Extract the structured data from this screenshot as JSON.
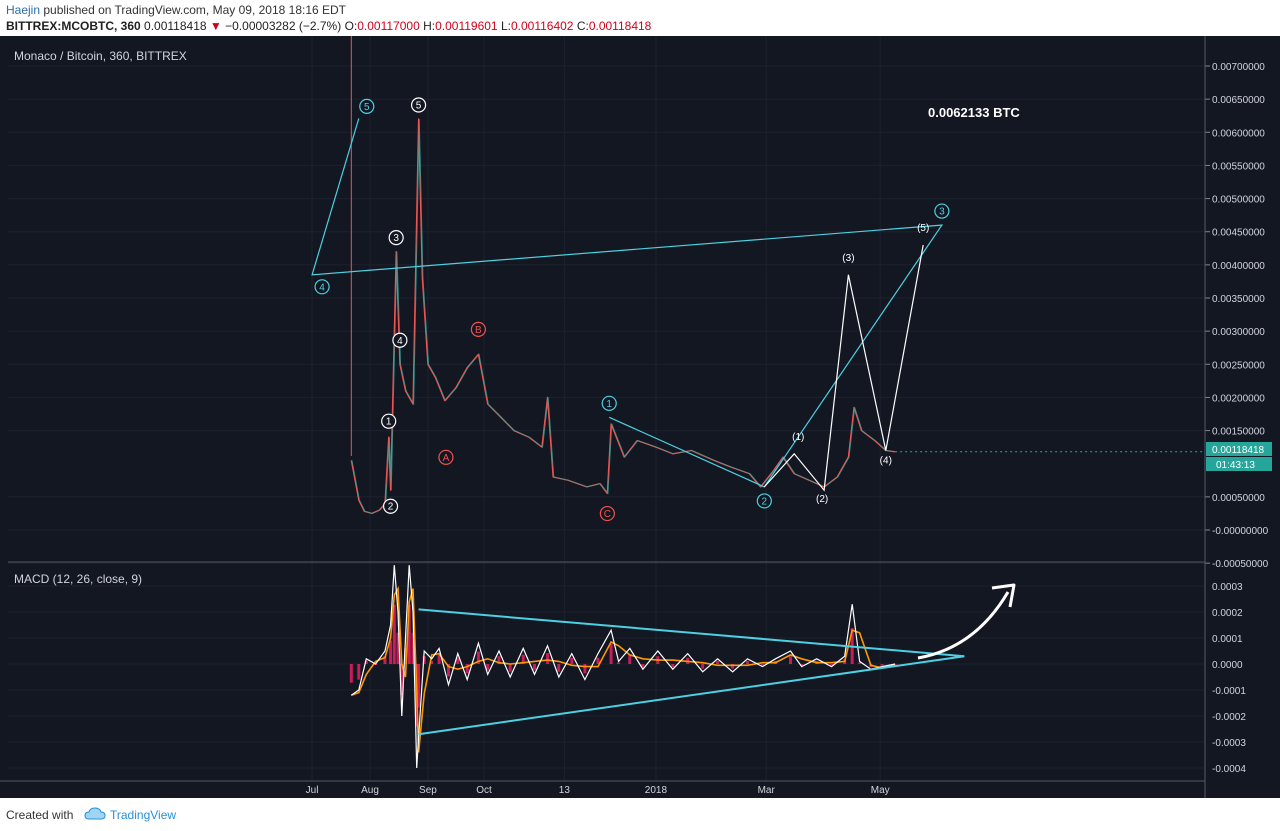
{
  "header": {
    "author": "Haejin",
    "published": "published on TradingView.com, May 09, 2018 18:16 EDT",
    "symbol": "BITTREX:MCOBTC, 360",
    "last": "0.00118418",
    "change": "−0.00003282 (−2.7%)",
    "o_label": "O:",
    "o_value": "0.00117000",
    "h_label": "H:",
    "h_value": "0.00119601",
    "l_label": "L:",
    "l_value": "0.00116402",
    "c_label": "C:",
    "c_value": "0.00118418"
  },
  "footer": {
    "created_with": "Created with",
    "brand": "TradingView"
  },
  "colors": {
    "bg": "#131722",
    "up": "#26a69a",
    "down": "#ef5350",
    "wave": "#4dd0e1",
    "macd": "#ffffff",
    "signal": "#ff9800",
    "hist": "#e91e63"
  },
  "chart_data": [
    {
      "type": "line",
      "title": "Monaco / Bitcoin, 360, BITTREX",
      "x_ticks": [
        "Aug",
        "Oct",
        "13",
        "2018",
        "Mar",
        "May",
        "Jul",
        "Sep"
      ],
      "y_ticks": [
        "0.00700000",
        "0.00650000",
        "0.00600000",
        "0.00550000",
        "0.00500000",
        "0.00450000",
        "0.00400000",
        "0.00350000",
        "0.00300000",
        "0.00250000",
        "0.00200000",
        "0.00150000",
        "0.00050000",
        "-0.00000000",
        "-0.00050000"
      ],
      "ylim": [
        -0.0006,
        0.0073
      ],
      "last_price_label": "0.00118418",
      "countdown_label": "01:43:13",
      "price": [
        [
          "Jul 22",
          0.00105
        ],
        [
          "Jul 26",
          0.00045
        ],
        [
          "Jul 29",
          0.00028
        ],
        [
          "Aug 2",
          0.00025
        ],
        [
          "Aug 6",
          0.0003
        ],
        [
          "Aug 9",
          0.0004
        ],
        [
          "Aug 11",
          0.0014
        ],
        [
          "Aug 12",
          0.0006
        ],
        [
          "Aug 15",
          0.0042
        ],
        [
          "Aug 17",
          0.0025
        ],
        [
          "Aug 20",
          0.0021
        ],
        [
          "Aug 24",
          0.0019
        ],
        [
          "Aug 27",
          0.0062
        ],
        [
          "Aug 29",
          0.0038
        ],
        [
          "Sep 1",
          0.0025
        ],
        [
          "Sep 5",
          0.0023
        ],
        [
          "Sep 10",
          0.00195
        ],
        [
          "Sep 16",
          0.00215
        ],
        [
          "Sep 22",
          0.00245
        ],
        [
          "Sep 28",
          0.00265
        ],
        [
          "Oct 3",
          0.0019
        ],
        [
          "Oct 10",
          0.0017
        ],
        [
          "Oct 17",
          0.0015
        ],
        [
          "Oct 25",
          0.0014
        ],
        [
          "Nov 1",
          0.00125
        ],
        [
          "Nov 4",
          0.002
        ],
        [
          "Nov 7",
          0.0008
        ],
        [
          "Nov 15",
          0.00075
        ],
        [
          "Nov 25",
          0.00065
        ],
        [
          "Dec 2",
          0.0007
        ],
        [
          "Dec 6",
          0.00055
        ],
        [
          "Dec 8",
          0.0016
        ],
        [
          "Dec 15",
          0.0011
        ],
        [
          "Dec 22",
          0.00135
        ],
        [
          "Jan 1",
          0.00125
        ],
        [
          "Jan 10",
          0.00115
        ],
        [
          "Jan 20",
          0.0012
        ],
        [
          "Feb 1",
          0.00105
        ],
        [
          "Feb 10",
          0.00095
        ],
        [
          "Feb 20",
          0.00085
        ],
        [
          "Feb 26",
          0.00065
        ],
        [
          "Mar 5",
          0.0009
        ],
        [
          "Mar 10",
          0.0011
        ],
        [
          "Mar 16",
          0.00085
        ],
        [
          "Mar 24",
          0.00075
        ],
        [
          "Apr 1",
          0.00065
        ],
        [
          "Apr 8",
          0.0008
        ],
        [
          "Apr 14",
          0.0011
        ],
        [
          "Apr 17",
          0.00185
        ],
        [
          "Apr 21",
          0.0015
        ],
        [
          "Apr 28",
          0.00135
        ],
        [
          "May 4",
          0.0012
        ],
        [
          "May 9",
          0.00118
        ]
      ],
      "wave_main": {
        "points": [
          [
            "Dec 7",
            0.0017
          ],
          [
            "Feb 28",
            0.00065
          ],
          [
            "Jun 3",
            0.0046
          ],
          [
            "Jul 1",
            0.00385
          ],
          [
            "Jul 26",
            0.00621
          ]
        ],
        "labels": [
          "1",
          "2",
          "3",
          "4",
          "5"
        ]
      },
      "wave_sub": {
        "points": [
          [
            "Feb 28",
            0.00065
          ],
          [
            "Mar 16",
            0.00115
          ],
          [
            "Apr 1",
            0.0006
          ],
          [
            "Apr 14",
            0.00385
          ],
          [
            "May 4",
            0.0012
          ],
          [
            "May 24",
            0.0043
          ]
        ],
        "labels": [
          "(1)",
          "(2)",
          "(3)",
          "(4)",
          "(5)"
        ]
      },
      "waves_early": [
        "1",
        "2",
        "3",
        "4",
        "5"
      ],
      "waves_correction": [
        "A",
        "B",
        "C"
      ],
      "target_label": "0.0062133 BTC"
    },
    {
      "type": "line",
      "title": "MACD (12, 26, close, 9)",
      "y_ticks": [
        "0.0003",
        "0.0002",
        "0.0001",
        "0.0000",
        "-0.0001",
        "-0.0002",
        "-0.0003",
        "-0.0004"
      ],
      "ylim": [
        -0.00043,
        0.00038
      ],
      "macd": [
        [
          "Jul 22",
          -0.00012
        ],
        [
          "Jul 26",
          -0.0001
        ],
        [
          "Jul 30",
          2e-05
        ],
        [
          "Aug 4",
          0.0
        ],
        [
          "Aug 9",
          5e-05
        ],
        [
          "Aug 12",
          0.00015
        ],
        [
          "Aug 14",
          0.00038
        ],
        [
          "Aug 16",
          0.0002
        ],
        [
          "Aug 18",
          -0.0002
        ],
        [
          "Aug 20",
          0.0001
        ],
        [
          "Aug 22",
          0.00038
        ],
        [
          "Aug 24",
          0.0002
        ],
        [
          "Aug 26",
          -0.0004
        ],
        [
          "Aug 27",
          -0.00028
        ],
        [
          "Aug 30",
          5e-05
        ],
        [
          "Sep 3",
          2e-05
        ],
        [
          "Sep 7",
          6e-05
        ],
        [
          "Sep 12",
          -8e-05
        ],
        [
          "Sep 17",
          4e-05
        ],
        [
          "Sep 22",
          -6e-05
        ],
        [
          "Sep 28",
          8e-05
        ],
        [
          "Oct 3",
          -4e-05
        ],
        [
          "Oct 9",
          5e-05
        ],
        [
          "Oct 15",
          -5e-05
        ],
        [
          "Oct 22",
          6e-05
        ],
        [
          "Oct 28",
          -4e-05
        ],
        [
          "Nov 4",
          7e-05
        ],
        [
          "Nov 10",
          -5e-05
        ],
        [
          "Nov 17",
          4e-05
        ],
        [
          "Nov 24",
          -6e-05
        ],
        [
          "Dec 1",
          4e-05
        ],
        [
          "Dec 8",
          0.00013
        ],
        [
          "Dec 12",
          1e-05
        ],
        [
          "Dec 18",
          6e-05
        ],
        [
          "Dec 25",
          -2e-05
        ],
        [
          "Jan 2",
          5e-05
        ],
        [
          "Jan 10",
          -2e-05
        ],
        [
          "Jan 18",
          4e-05
        ],
        [
          "Jan 26",
          -3e-05
        ],
        [
          "Feb 3",
          2e-05
        ],
        [
          "Feb 11",
          -3e-05
        ],
        [
          "Feb 19",
          2e-05
        ],
        [
          "Feb 27",
          -1e-05
        ],
        [
          "Mar 6",
          2e-05
        ],
        [
          "Mar 14",
          5e-05
        ],
        [
          "Mar 20",
          -1e-05
        ],
        [
          "Mar 28",
          2e-05
        ],
        [
          "Apr 5",
          -1e-05
        ],
        [
          "Apr 12",
          3e-05
        ],
        [
          "Apr 16",
          0.00023
        ],
        [
          "Apr 20",
          1e-05
        ],
        [
          "Apr 26",
          -2e-05
        ],
        [
          "May 2",
          -1e-05
        ],
        [
          "May 9",
          0.0
        ]
      ],
      "triangle_top": [
        [
          "Aug 27",
          0.00021
        ],
        [
          "Jun 15",
          3e-05
        ]
      ],
      "triangle_bottom": [
        [
          "Aug 27",
          -0.00027
        ],
        [
          "Jun 15",
          3e-05
        ]
      ],
      "arrow": "up"
    }
  ]
}
